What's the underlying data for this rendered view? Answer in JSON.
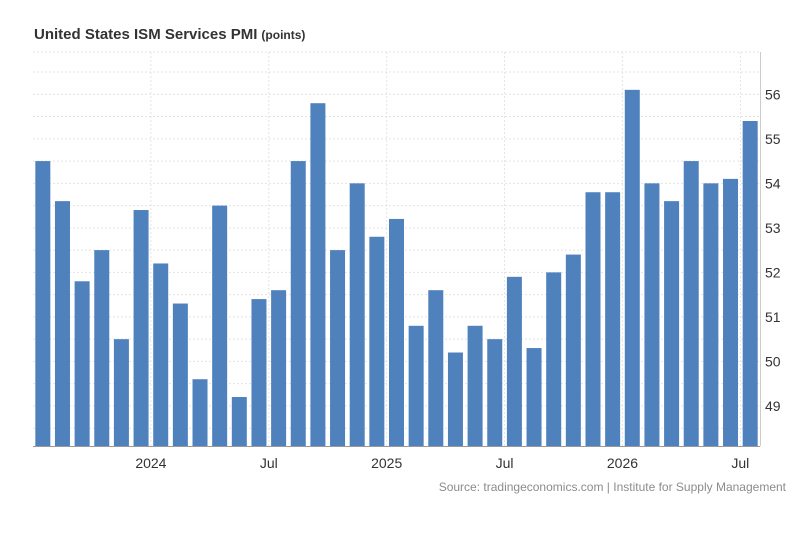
{
  "chart_data": {
    "type": "bar",
    "title": "United States ISM Services PMI",
    "unit": "(points)",
    "series": [
      {
        "values": [
          54.5,
          53.6,
          51.8,
          52.5,
          50.5,
          53.4,
          52.2,
          51.3,
          49.6,
          53.5,
          49.2,
          51.4,
          51.6,
          54.5,
          55.8,
          52.5,
          54.0,
          52.8,
          53.2,
          50.8,
          51.6,
          50.2,
          50.8,
          50.5,
          51.9,
          50.3,
          52.0,
          52.4,
          53.8,
          53.8,
          56.1,
          54.0,
          53.6,
          54.5,
          54.0,
          54.1,
          55.4
        ],
        "color": "#4f81bd"
      }
    ],
    "x_tick_labels": [
      {
        "label": "2024",
        "index": 5.5
      },
      {
        "label": "Jul",
        "index": 11.5
      },
      {
        "label": "2025",
        "index": 17.5
      },
      {
        "label": "Jul",
        "index": 23.5
      },
      {
        "label": "2026",
        "index": 29.5
      },
      {
        "label": "Jul",
        "index": 35.5
      }
    ],
    "y_ticks": [
      49,
      50,
      51,
      52,
      53,
      54,
      55,
      56
    ],
    "ylim": [
      48.1,
      56.95
    ],
    "y_axis_position": "right",
    "grid": true
  },
  "source": "Source: tradingeconomics.com | Institute for Supply Management"
}
